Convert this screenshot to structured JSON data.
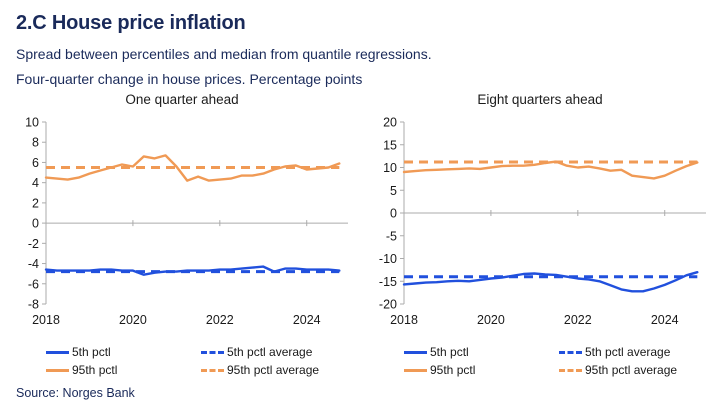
{
  "header": {
    "title": "2.C House price inflation",
    "subtitle1": "Spread between percentiles and median from quantile regressions.",
    "subtitle2": "Four-quarter change in house prices. Percentage points"
  },
  "source": "Source: Norges Bank",
  "colors": {
    "blue": "#2150dd",
    "orange": "#f09a55",
    "navy": "#1a2a5a",
    "axis": "#ababab",
    "tick_text": "#1a1a1a"
  },
  "legend": {
    "items": [
      {
        "label": "5th pctl",
        "color": "blue",
        "style": "solid"
      },
      {
        "label": "5th pctl average",
        "color": "blue",
        "style": "dashed"
      },
      {
        "label": "95th pctl",
        "color": "orange",
        "style": "solid"
      },
      {
        "label": "95th pctl average",
        "color": "orange",
        "style": "dashed"
      }
    ]
  },
  "chart_data": [
    {
      "type": "line",
      "title": "One quarter ahead",
      "x_start": 2018.0,
      "x_step": 0.25,
      "xticks": [
        2018,
        2020,
        2022,
        2024
      ],
      "ylim": [
        -8,
        10
      ],
      "ytick_step": 2,
      "grid": "zero-line-only",
      "legend_position": "below",
      "series": [
        {
          "name": "5th pctl",
          "color": "blue",
          "style": "solid",
          "values": [
            -4.6,
            -4.7,
            -4.7,
            -4.7,
            -4.7,
            -4.6,
            -4.6,
            -4.7,
            -4.7,
            -5.1,
            -4.9,
            -4.8,
            -4.8,
            -4.7,
            -4.7,
            -4.7,
            -4.6,
            -4.6,
            -4.5,
            -4.4,
            -4.3,
            -4.8,
            -4.5,
            -4.5,
            -4.6,
            -4.6,
            -4.6,
            -4.7
          ]
        },
        {
          "name": "95th pctl",
          "color": "orange",
          "style": "solid",
          "values": [
            4.5,
            4.4,
            4.3,
            4.5,
            4.9,
            5.2,
            5.5,
            5.8,
            5.6,
            6.6,
            6.4,
            6.7,
            5.6,
            4.2,
            4.6,
            4.2,
            4.3,
            4.4,
            4.7,
            4.7,
            4.9,
            5.3,
            5.6,
            5.7,
            5.3,
            5.4,
            5.5,
            5.9
          ]
        },
        {
          "name": "5th pctl average",
          "color": "blue",
          "style": "dashed",
          "constant": -4.8
        },
        {
          "name": "95th pctl average",
          "color": "orange",
          "style": "dashed",
          "constant": 5.5
        }
      ]
    },
    {
      "type": "line",
      "title": "Eight quarters ahead",
      "x_start": 2018.0,
      "x_step": 0.25,
      "xticks": [
        2018,
        2020,
        2022,
        2024
      ],
      "ylim": [
        -20,
        20
      ],
      "ytick_step": 5,
      "grid": "zero-line-only",
      "legend_position": "below",
      "series": [
        {
          "name": "5th pctl",
          "color": "blue",
          "style": "solid",
          "values": [
            -15.7,
            -15.5,
            -15.3,
            -15.2,
            -15.0,
            -14.9,
            -15.0,
            -14.7,
            -14.4,
            -14.2,
            -13.8,
            -13.4,
            -13.3,
            -13.5,
            -13.6,
            -14.0,
            -14.4,
            -14.6,
            -15.0,
            -15.9,
            -16.8,
            -17.2,
            -17.2,
            -16.6,
            -15.8,
            -14.8,
            -13.7,
            -13.0
          ]
        },
        {
          "name": "95th pctl",
          "color": "orange",
          "style": "solid",
          "values": [
            9.0,
            9.2,
            9.4,
            9.5,
            9.6,
            9.7,
            9.8,
            9.7,
            10.0,
            10.3,
            10.4,
            10.4,
            10.6,
            11.0,
            11.3,
            10.4,
            10.0,
            10.2,
            9.8,
            9.3,
            9.5,
            8.2,
            7.9,
            7.6,
            8.2,
            9.3,
            10.3,
            11.1
          ]
        },
        {
          "name": "5th pctl average",
          "color": "blue",
          "style": "dashed",
          "constant": -14.0
        },
        {
          "name": "95th pctl average",
          "color": "orange",
          "style": "dashed",
          "constant": 11.2
        }
      ]
    }
  ]
}
